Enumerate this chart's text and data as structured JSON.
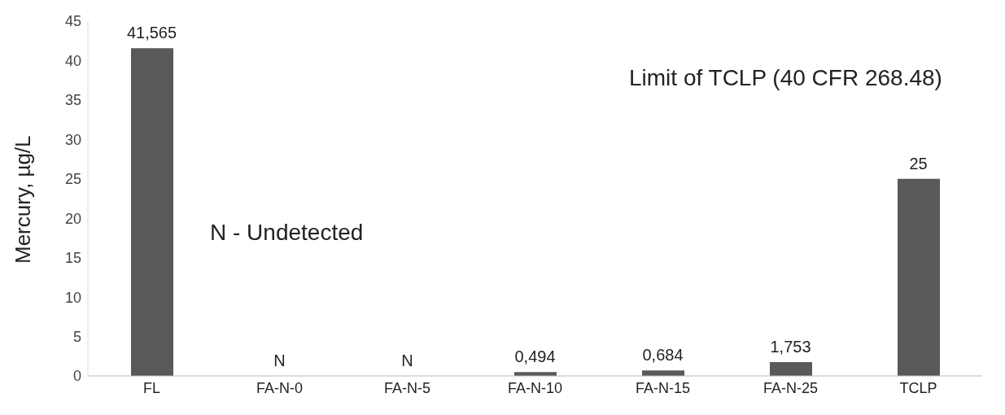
{
  "chart_data": {
    "type": "bar",
    "ylabel": "Mercury, µg/L",
    "categories": [
      "FL",
      "FA-N-0",
      "FA-N-5",
      "FA-N-10",
      "FA-N-15",
      "FA-N-25",
      "TCLP"
    ],
    "values": [
      41.565,
      null,
      null,
      0.494,
      0.684,
      1.753,
      25
    ],
    "value_labels": [
      "41,565",
      "N",
      "N",
      "0,494",
      "0,684",
      "1,753",
      "25"
    ],
    "color": "#595959",
    "ylim": [
      0,
      45
    ],
    "yticks": [
      0,
      5,
      10,
      15,
      20,
      25,
      30,
      35,
      40,
      45
    ],
    "annotations": [
      "N - Undetected",
      "Limit of TCLP (40 CFR 268.48)"
    ]
  }
}
